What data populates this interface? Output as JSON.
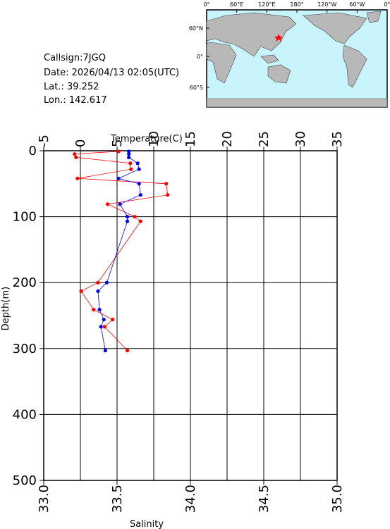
{
  "info": {
    "callsign": "Callsign:7JGQ",
    "date": "Date:  2026/04/13 02:05(UTC)",
    "lat": "Lat.:  39.252",
    "lon": "Lon.:  142.617"
  },
  "map": {
    "lon_labels": [
      "0°",
      "60°E",
      "120°E",
      "180°",
      "120°W",
      "60°W",
      "0°"
    ],
    "lat_labels": [
      "60°N",
      "0°",
      "60°S"
    ]
  },
  "chart_data": {
    "type": "line",
    "xlabel": "Temperature(C)",
    "x2label": "Salinity",
    "ylabel": "Depth(m)",
    "xlim": [
      -5,
      35
    ],
    "xticks": [
      -5,
      0,
      5,
      10,
      15,
      20,
      25,
      30,
      35
    ],
    "x2lim": [
      33,
      35
    ],
    "x2ticks": [
      {
        "value": 33,
        "label": "33.0"
      },
      33.5,
      {
        "value": 34,
        "label": "34.0"
      },
      34.5,
      {
        "value": 35,
        "label": "35.0"
      }
    ],
    "ylim": [
      0,
      500
    ],
    "yticks": [
      0,
      100,
      200,
      300,
      400,
      500
    ],
    "y_inverted": true,
    "grid": true,
    "depth": [
      1,
      5,
      10,
      19,
      28,
      42,
      50,
      67,
      81,
      100,
      107,
      200,
      213,
      241,
      256,
      267,
      303
    ],
    "series": [
      {
        "color": "#ff0000",
        "axis": "x",
        "values": [
          5.2,
          -0.8,
          -0.6,
          6.8,
          6.9,
          -0.4,
          11.7,
          11.9,
          3.7,
          7.4,
          8.2,
          2.4,
          0.1,
          1.8,
          4.4,
          3.3,
          6.4
        ]
      },
      {
        "color": "#0000ff",
        "axis": "x2",
        "values": [
          33.58,
          33.58,
          33.58,
          33.64,
          33.65,
          33.51,
          33.65,
          33.66,
          33.52,
          33.57,
          33.57,
          33.43,
          33.37,
          33.38,
          33.41,
          33.39,
          33.42
        ]
      }
    ]
  }
}
